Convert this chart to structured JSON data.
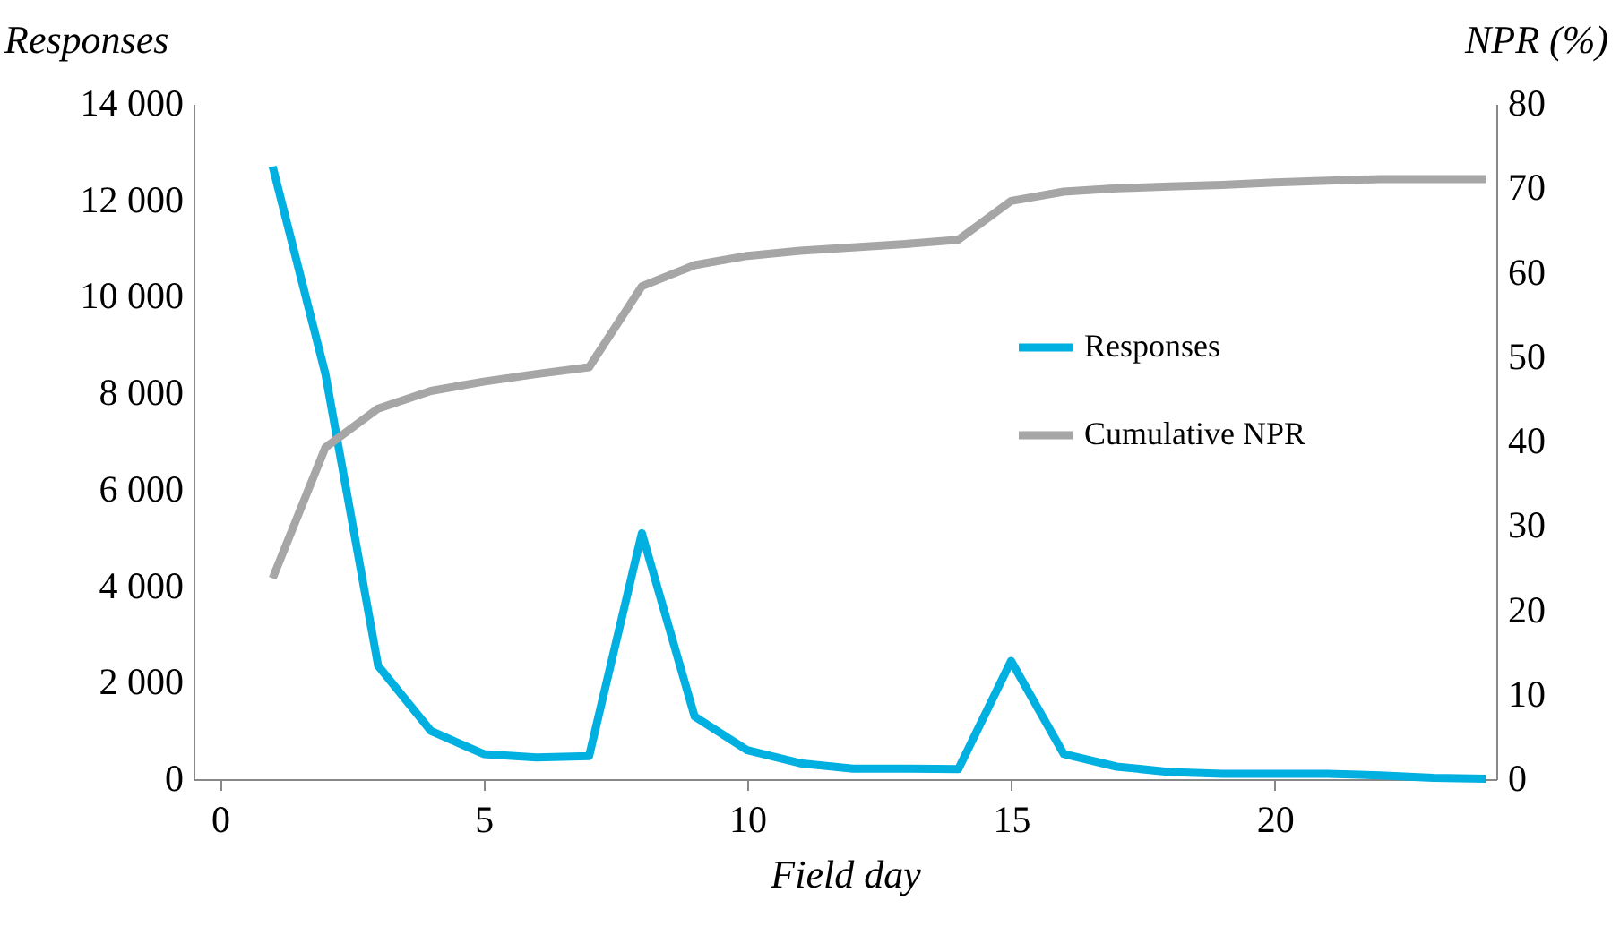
{
  "chart_data": {
    "type": "line",
    "xlabel": "Field day",
    "ylabel": "Responses",
    "y2label": "NPR (%)",
    "x": [
      1,
      2,
      3,
      4,
      5,
      6,
      7,
      8,
      9,
      10,
      11,
      12,
      13,
      14,
      15,
      16,
      17,
      18,
      19,
      20,
      21,
      22,
      23,
      24
    ],
    "series": [
      {
        "name": "Responses",
        "color": "#00b0e0",
        "values": [
          12700,
          8400,
          2350,
          1000,
          520,
          450,
          480,
          5100,
          1300,
          600,
          330,
          220,
          220,
          210,
          2450,
          520,
          260,
          150,
          110,
          110,
          110,
          80,
          30,
          10
        ]
      },
      {
        "name": "Cumulative NPR",
        "color": "#a6a6a6",
        "axis": "y2",
        "values": [
          23.8,
          39.3,
          43.9,
          46,
          47.1,
          48,
          48.8,
          58.4,
          60.9,
          62,
          62.6,
          63,
          63.4,
          63.9,
          68.5,
          69.6,
          70,
          70.2,
          70.4,
          70.7,
          70.9,
          71.1,
          71.1,
          71.1
        ]
      }
    ],
    "xlim": [
      -0.5,
      24.2
    ],
    "xticks": [
      0,
      5,
      10,
      15,
      20
    ],
    "ylim": [
      0,
      14000
    ],
    "yticks": [
      0,
      {
        "value": 2000,
        "label": "2 000"
      },
      {
        "value": 4000,
        "label": "4 000"
      },
      {
        "value": 6000,
        "label": "6 000"
      },
      {
        "value": 8000,
        "label": "8 000"
      },
      {
        "value": 10000,
        "label": "10 000"
      },
      {
        "value": 12000,
        "label": "12 000"
      },
      {
        "value": 14000,
        "label": "14 000"
      }
    ],
    "y2lim": [
      0,
      80
    ],
    "y2ticks": [
      0,
      10,
      20,
      30,
      40,
      50,
      60,
      70,
      80
    ],
    "legend": "right",
    "grid": false,
    "marker": "none",
    "line_style": "solid"
  }
}
